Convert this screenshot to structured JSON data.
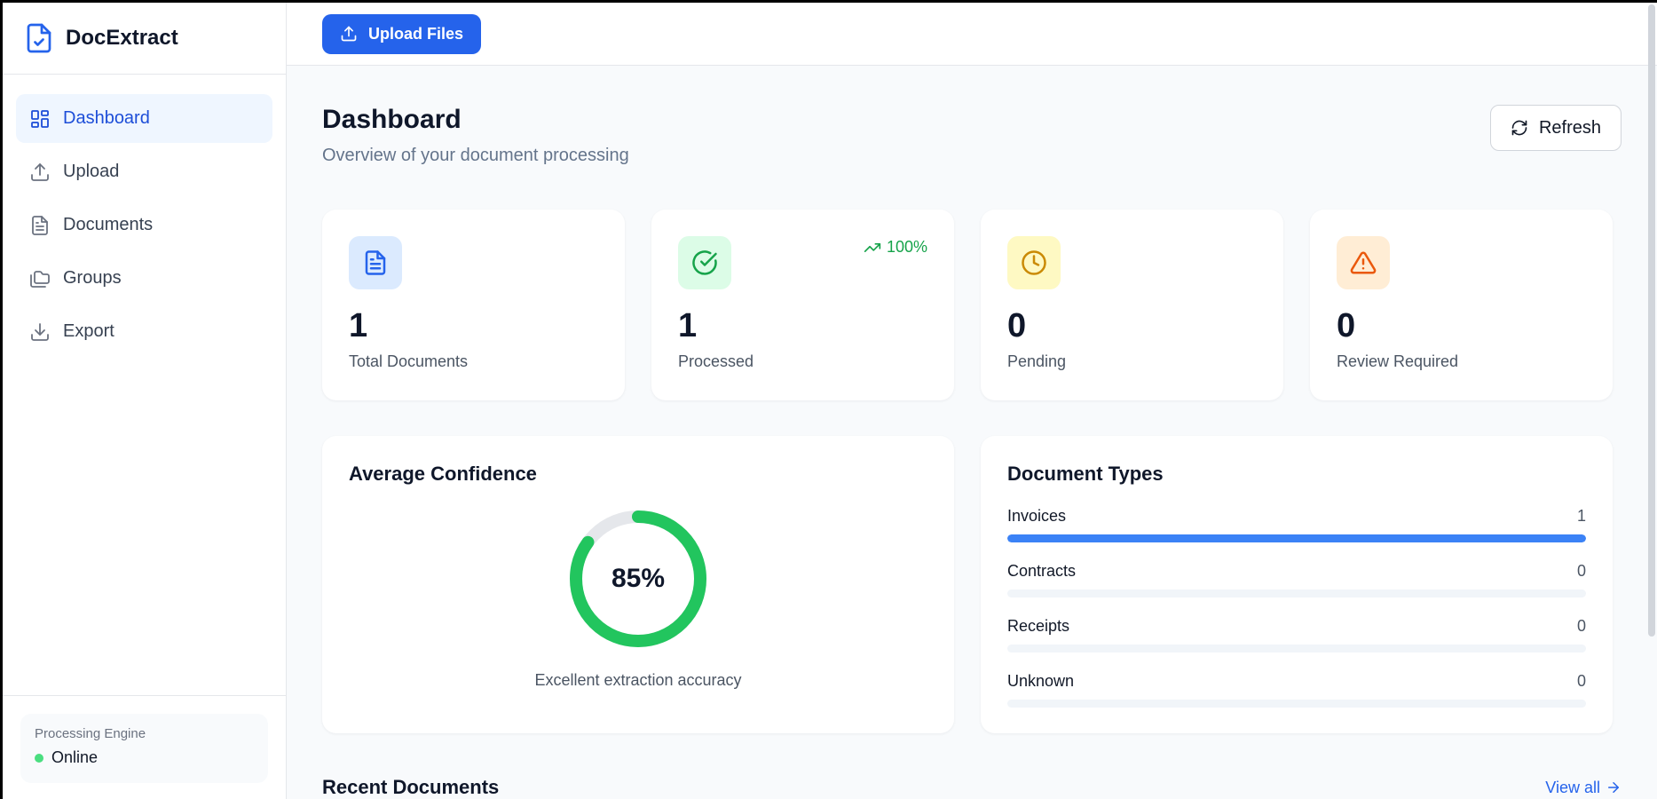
{
  "brand": {
    "name": "DocExtract",
    "icon": "file-check-icon"
  },
  "nav": {
    "items": [
      {
        "label": "Dashboard",
        "icon": "dashboard-grid-icon",
        "active": true
      },
      {
        "label": "Upload",
        "icon": "upload-icon"
      },
      {
        "label": "Documents",
        "icon": "document-icon"
      },
      {
        "label": "Groups",
        "icon": "folders-icon"
      },
      {
        "label": "Export",
        "icon": "download-icon"
      }
    ]
  },
  "footer": {
    "engine_label": "Processing Engine",
    "engine_status": "Online",
    "status_color": "#4ade80"
  },
  "toolbar": {
    "upload_label": "Upload Files"
  },
  "page": {
    "title": "Dashboard",
    "subtitle": "Overview of your document processing",
    "refresh_label": "Refresh"
  },
  "stats": [
    {
      "value": "1",
      "label": "Total Documents",
      "icon": "document-icon",
      "color": "#2563eb",
      "bg": "#dbeafe"
    },
    {
      "value": "1",
      "label": "Processed",
      "icon": "check-circle-icon",
      "color": "#16a34a",
      "bg": "#dcfce7",
      "trend": "100%"
    },
    {
      "value": "0",
      "label": "Pending",
      "icon": "clock-icon",
      "color": "#ca8a04",
      "bg": "#fef9c3"
    },
    {
      "value": "0",
      "label": "Review Required",
      "icon": "warning-icon",
      "color": "#ea580c",
      "bg": "#ffedd5"
    }
  ],
  "confidence": {
    "title": "Average Confidence",
    "value_text": "85%",
    "value": 0.85,
    "caption": "Excellent extraction accuracy",
    "color": "#22c55e"
  },
  "types": {
    "title": "Document Types",
    "items": [
      {
        "label": "Invoices",
        "count": "1",
        "fraction": 1
      },
      {
        "label": "Contracts",
        "count": "0",
        "fraction": 0
      },
      {
        "label": "Receipts",
        "count": "0",
        "fraction": 0
      },
      {
        "label": "Unknown",
        "count": "0",
        "fraction": 0
      }
    ]
  },
  "recent": {
    "title": "Recent Documents",
    "view_all": "View all"
  }
}
